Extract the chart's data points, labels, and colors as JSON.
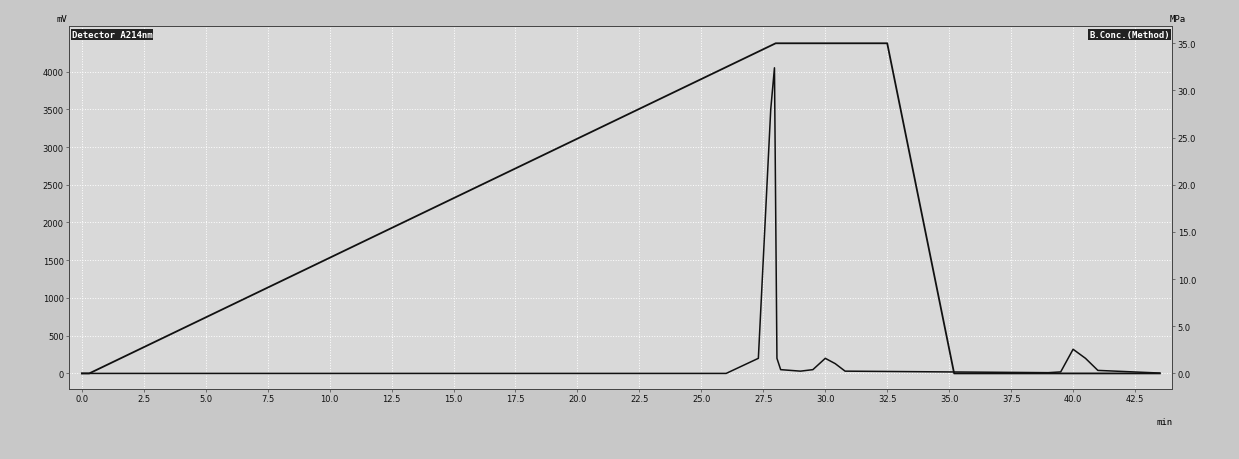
{
  "title_left": "Detector A214nm",
  "title_right": "B.Conc.(Method)",
  "ylabel_left": "mV",
  "ylabel_right": "MPa",
  "xlabel": "min",
  "xlim": [
    -0.5,
    44
  ],
  "ylim_left": [
    -200,
    4600
  ],
  "ylim_right": [
    -1.6,
    36.8
  ],
  "yticks_left": [
    0,
    500,
    1000,
    1500,
    2000,
    2500,
    3000,
    3500,
    4000
  ],
  "yticks_right": [
    0.0,
    5.0,
    10.0,
    15.0,
    20.0,
    25.0,
    30.0,
    35.0
  ],
  "xticks": [
    0.0,
    2.5,
    5.0,
    7.5,
    10.0,
    12.5,
    15.0,
    17.5,
    20.0,
    22.5,
    25.0,
    27.5,
    30.0,
    32.5,
    35.0,
    37.5,
    40.0,
    42.5
  ],
  "background_color": "#d9d9d9",
  "grid_color": "#ffffff",
  "line_color": "#111111",
  "fig_bg": "#c8c8c8",
  "bconc_t": [
    0,
    0.3,
    28.0,
    28.05,
    32.5,
    32.5,
    35.2,
    35.25,
    43.5
  ],
  "bconc_v": [
    0,
    0,
    35.0,
    35.0,
    35.0,
    35.0,
    0.0,
    0.0,
    0.0
  ],
  "uv_t": [
    0,
    0.3,
    26.0,
    27.3,
    27.8,
    27.95,
    28.05,
    28.2,
    29.0,
    29.5,
    30.0,
    30.4,
    30.8,
    39.0,
    39.5,
    40.0,
    40.5,
    41.0,
    43.5
  ],
  "uv_v": [
    0,
    0,
    0,
    200,
    3500,
    4050,
    200,
    50,
    30,
    50,
    200,
    130,
    30,
    10,
    20,
    320,
    200,
    40,
    5
  ]
}
